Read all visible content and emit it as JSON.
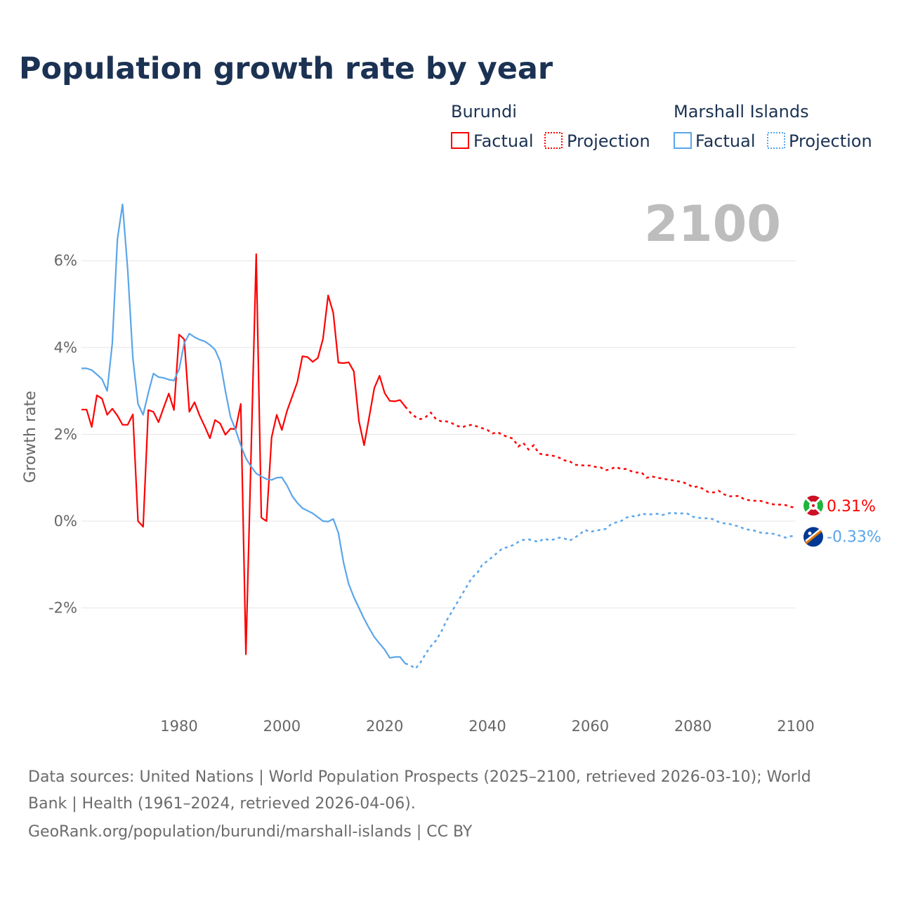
{
  "title": "Population growth rate by year",
  "current_year_label": "2100",
  "legend": {
    "groups": [
      {
        "name": "Burundi",
        "factual": "Factual",
        "projection": "Projection",
        "color": "#ff0000"
      },
      {
        "name": "Marshall Islands",
        "factual": "Factual",
        "projection": "Projection",
        "color": "#5aa5ea"
      }
    ]
  },
  "footer": {
    "line1": "Data sources: United Nations | World Population Prospects (2025–2100, retrieved 2026-03-10); World",
    "line2": "Bank | Health (1961–2024, retrieved 2026-04-06).",
    "line3": "GeoRank.org/population/burundi/marshall-islands | CC BY"
  },
  "chart_data": {
    "type": "line",
    "title": "Population growth rate by year",
    "xlabel": "",
    "ylabel": "Growth rate",
    "xlim": [
      1961,
      2100
    ],
    "ylim": [
      -4.2,
      7.5
    ],
    "x_ticks": [
      1980,
      2000,
      2020,
      2040,
      2060,
      2080,
      2100
    ],
    "y_ticks": [
      -2,
      0,
      2,
      4,
      6
    ],
    "y_tick_labels": [
      "-2%",
      "0%",
      "2%",
      "4%",
      "6%"
    ],
    "grid": true,
    "legend_position": "top-right",
    "series": [
      {
        "name": "Burundi",
        "color": "#ff0000",
        "end_label": "0.31%",
        "factual_start": 1961,
        "factual": [
          2.57,
          2.57,
          2.17,
          2.9,
          2.82,
          2.45,
          2.59,
          2.43,
          2.22,
          2.22,
          2.46,
          0.0,
          -0.13,
          2.56,
          2.52,
          2.28,
          2.62,
          2.94,
          2.56,
          4.3,
          4.19,
          2.52,
          2.74,
          2.43,
          2.18,
          1.91,
          2.33,
          2.25,
          1.99,
          2.13,
          2.12,
          2.7,
          -3.07,
          1.5,
          6.15,
          0.08,
          0.0,
          1.93,
          2.45,
          2.1,
          2.54,
          2.87,
          3.2,
          3.8,
          3.78,
          3.67,
          3.76,
          4.2,
          5.2,
          4.8,
          3.65,
          3.64,
          3.66,
          3.45,
          2.3,
          1.75,
          2.4,
          3.07,
          3.35,
          2.95,
          2.77,
          2.76,
          2.79,
          2.64
        ],
        "projection_start": 2025,
        "projection": [
          2.5,
          2.4,
          2.35,
          2.4,
          2.5,
          2.35,
          2.3,
          2.3,
          2.26,
          2.2,
          2.16,
          2.2,
          2.22,
          2.18,
          2.14,
          2.1,
          2.02,
          2.05,
          1.98,
          1.94,
          1.9,
          1.72,
          1.8,
          1.65,
          1.75,
          1.56,
          1.53,
          1.52,
          1.5,
          1.46,
          1.4,
          1.38,
          1.3,
          1.29,
          1.28,
          1.28,
          1.25,
          1.24,
          1.17,
          1.2,
          1.25,
          1.2,
          1.2,
          1.15,
          1.12,
          1.12,
          1.0,
          1.03,
          1.0,
          0.98,
          0.96,
          0.94,
          0.92,
          0.9,
          0.85,
          0.78,
          0.8,
          0.74,
          0.67,
          0.66,
          0.7,
          0.62,
          0.57,
          0.58,
          0.58,
          0.5,
          0.48,
          0.47,
          0.47,
          0.44,
          0.4,
          0.38,
          0.38,
          0.37,
          0.33,
          0.31
        ]
      },
      {
        "name": "Marshall Islands",
        "color": "#5aa5ea",
        "end_label": "-0.33%",
        "factual_start": 1961,
        "factual": [
          3.52,
          3.52,
          3.48,
          3.38,
          3.27,
          3.0,
          4.1,
          6.5,
          7.3,
          5.8,
          3.75,
          2.7,
          2.45,
          2.95,
          3.4,
          3.32,
          3.3,
          3.26,
          3.24,
          3.5,
          4.1,
          4.32,
          4.24,
          4.18,
          4.14,
          4.06,
          3.95,
          3.68,
          3.0,
          2.4,
          2.1,
          1.75,
          1.45,
          1.26,
          1.1,
          1.03,
          0.97,
          0.95,
          1.0,
          1.01,
          0.82,
          0.58,
          0.42,
          0.3,
          0.24,
          0.18,
          0.09,
          0.0,
          -0.01,
          0.05,
          -0.27,
          -0.95,
          -1.45,
          -1.75,
          -2.0,
          -2.25,
          -2.47,
          -2.67,
          -2.82,
          -2.96,
          -3.15,
          -3.13,
          -3.13,
          -3.28
        ],
        "projection_start": 2025,
        "projection": [
          -3.32,
          -3.4,
          -3.25,
          -3.05,
          -2.88,
          -2.75,
          -2.55,
          -2.3,
          -2.1,
          -1.9,
          -1.7,
          -1.5,
          -1.3,
          -1.2,
          -1.0,
          -0.92,
          -0.82,
          -0.72,
          -0.62,
          -0.6,
          -0.55,
          -0.48,
          -0.43,
          -0.42,
          -0.45,
          -0.48,
          -0.4,
          -0.44,
          -0.42,
          -0.38,
          -0.4,
          -0.45,
          -0.38,
          -0.3,
          -0.2,
          -0.25,
          -0.22,
          -0.2,
          -0.18,
          -0.08,
          -0.03,
          0.0,
          0.08,
          0.12,
          0.1,
          0.18,
          0.15,
          0.16,
          0.17,
          0.14,
          0.17,
          0.2,
          0.17,
          0.18,
          0.17,
          0.1,
          0.08,
          0.06,
          0.07,
          0.04,
          -0.02,
          -0.05,
          -0.06,
          -0.1,
          -0.12,
          -0.18,
          -0.2,
          -0.22,
          -0.26,
          -0.28,
          -0.28,
          -0.3,
          -0.34,
          -0.38,
          -0.35,
          -0.33
        ]
      }
    ]
  }
}
